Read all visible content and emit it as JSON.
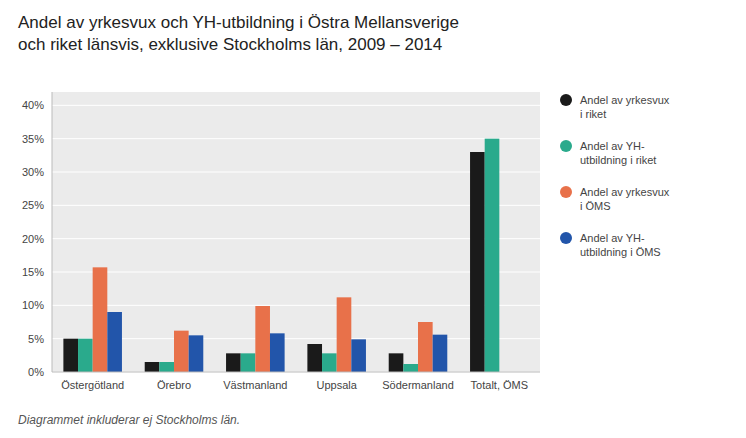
{
  "chart_data": {
    "type": "bar",
    "title": "Andel av yrkesvux och YH-utbildning i Östra Mellansverige\noch riket länsvis, exklusive Stockholms län, 2009 – 2014",
    "annotations": [
      "Diagrammet inkluderar ej Stockholms län."
    ],
    "categories": [
      "Östergötland",
      "Örebro",
      "Västmanland",
      "Uppsala",
      "Södermanland",
      "Totalt, ÖMS"
    ],
    "series": [
      {
        "name": "Andel av yrkesvux\ni riket",
        "color": "#1a1a1a",
        "values": [
          5.0,
          1.5,
          2.8,
          4.2,
          2.8,
          33.0
        ]
      },
      {
        "name": "Andel av YH-\nutbildning i riket",
        "color": "#2aaa8c",
        "values": [
          5.0,
          1.5,
          2.8,
          2.8,
          1.2,
          35.0
        ]
      },
      {
        "name": "Andel av yrkesvux\ni ÖMS",
        "color": "#e8714a",
        "values": [
          15.7,
          6.2,
          9.9,
          11.2,
          7.5,
          0
        ]
      },
      {
        "name": "Andel av YH-\nutbildning i ÖMS",
        "color": "#2255aa",
        "values": [
          9.0,
          5.5,
          5.8,
          4.9,
          5.6,
          0
        ]
      }
    ],
    "ylim": [
      0,
      42
    ],
    "yticks": [
      {
        "value": 0,
        "label": "0%"
      },
      {
        "value": 5,
        "label": "5%"
      },
      {
        "value": 10,
        "label": "10%"
      },
      {
        "value": 15,
        "label": "15%"
      },
      {
        "value": 20,
        "label": "20%"
      },
      {
        "value": 25,
        "label": "25%"
      },
      {
        "value": 30,
        "label": "30%"
      },
      {
        "value": 35,
        "label": "35%"
      },
      {
        "value": 40,
        "label": "40%"
      }
    ],
    "grid": true,
    "legend": "right"
  }
}
